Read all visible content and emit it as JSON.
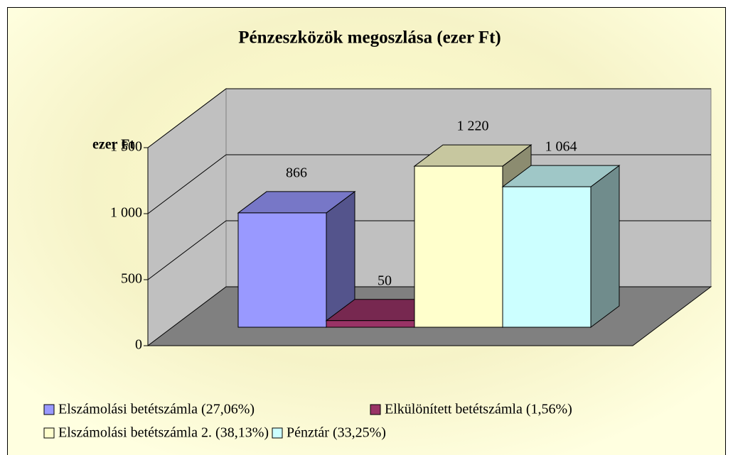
{
  "chart_data": {
    "type": "bar3d",
    "title": "Pénzeszközök megoszlása (ezer Ft)",
    "y_label": "ezer Ft",
    "series": [
      {
        "name": "Elszámolási betétszámla (27,06%)",
        "color": "#9999ff",
        "values": [
          866
        ]
      },
      {
        "name": "Elkülönített betétszámla (1,56%)",
        "color": "#993366",
        "values": [
          50
        ]
      },
      {
        "name": "Elszámolási betétszámla 2.  (38,13%)",
        "color": "#ffffcc",
        "values": [
          1220
        ],
        "value_labels": [
          "1 220"
        ]
      },
      {
        "name": "Pénztár (33,25%)",
        "color": "#ccffff",
        "values": [
          1064
        ],
        "value_labels": [
          "1 064"
        ]
      }
    ],
    "ylim": [
      0,
      1500
    ],
    "yticks": [
      0,
      500,
      {
        "value": 1000,
        "label": "1 000"
      },
      {
        "value": 1500,
        "label": "1 500"
      }
    ],
    "grid": true
  }
}
